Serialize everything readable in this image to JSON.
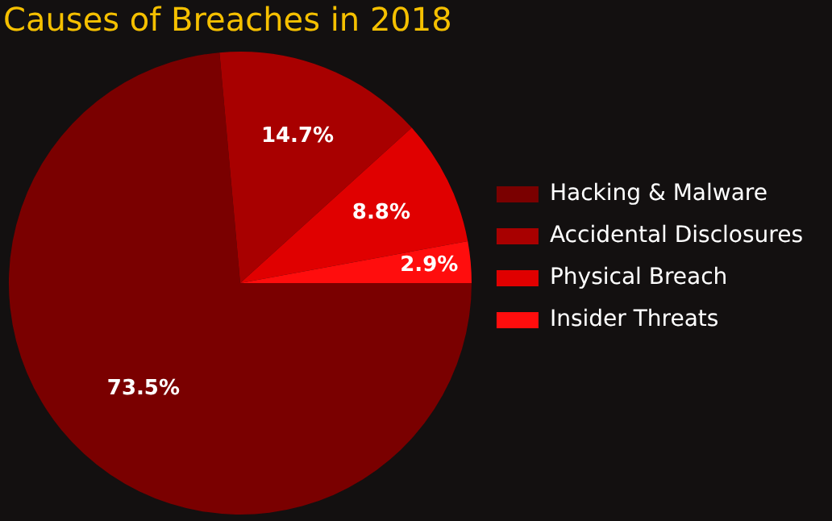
{
  "chart_data": {
    "type": "pie",
    "title": "Causes of Breaches in 2018",
    "categories": [
      "Hacking & Malware",
      "Accidental Disclosures",
      "Physical Breach",
      "Insider Threats"
    ],
    "values": [
      73.5,
      14.7,
      8.8,
      2.9
    ],
    "colors": [
      "#7a0000",
      "#a80000",
      "#e00000",
      "#ff0d0d"
    ],
    "value_labels": [
      "73.5%",
      "14.7%",
      "8.8%",
      "2.9%"
    ],
    "legend": "right"
  }
}
